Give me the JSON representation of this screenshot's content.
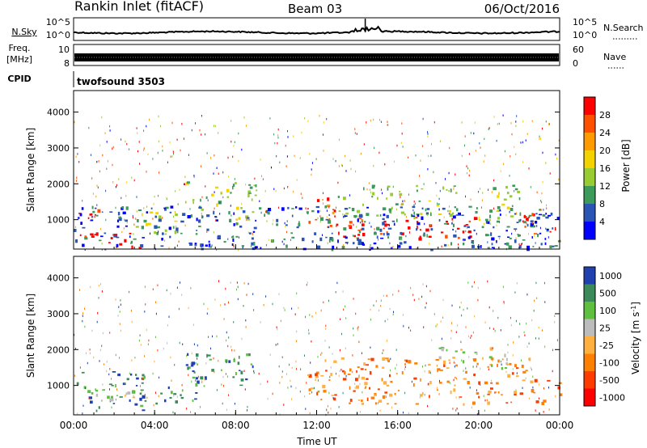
{
  "header": {
    "title": "Rankin Inlet (fitACF)",
    "beam": "Beam 03",
    "date": "06/Oct/2016"
  },
  "noise_panel": {
    "left_label": "N.Sky",
    "right_label": "N.Search",
    "ticks_left": [
      "10^5",
      "10^0"
    ],
    "ticks_right": [
      "10^5",
      "10^0"
    ]
  },
  "freq_panel": {
    "left_label_line1": "Freq.",
    "left_label_line2": "[MHz]",
    "right_label": "Nave",
    "ticks_left": [
      "10",
      "8"
    ],
    "ticks_right": [
      "60",
      "0"
    ]
  },
  "cpid": {
    "label": "CPID",
    "value": "twofsound 3503"
  },
  "chart_data": [
    {
      "type": "heatmap",
      "quantity": "Power",
      "ylabel": "Slant Range [km]",
      "colorbar_label": "Power [dB]",
      "colorbar_ticks": [
        "28",
        "24",
        "20",
        "16",
        "12",
        "8",
        "4"
      ],
      "colorbar_colors": [
        "#ff0000",
        "#ff5000",
        "#ff9a00",
        "#f2d200",
        "#99cc33",
        "#3c9a5a",
        "#2a55b5",
        "#0000ff"
      ],
      "xlim": [
        "00:00",
        "00:00"
      ],
      "ylim": [
        180,
        4600
      ],
      "yticks": [
        1000,
        2000,
        3000,
        4000
      ],
      "xticks": [
        "00:00",
        "04:00",
        "08:00",
        "12:00",
        "16:00",
        "20:00",
        "00:00"
      ],
      "regions": [
        {
          "t0": 0.0,
          "t1": 1.2,
          "r0": 500,
          "r1": 1500,
          "level": 0
        },
        {
          "t0": 1.0,
          "t1": 3.3,
          "r0": 180,
          "r1": 700,
          "level": 0
        },
        {
          "t0": 3.0,
          "t1": 5.5,
          "r0": 600,
          "r1": 1300,
          "level": 4
        },
        {
          "t0": 5.5,
          "t1": 9.0,
          "r0": 1000,
          "r1": 2100,
          "level": 4
        },
        {
          "t0": 11.5,
          "t1": 13.0,
          "r0": 900,
          "r1": 1700,
          "level": 1
        },
        {
          "t0": 12.5,
          "t1": 20.0,
          "r0": 500,
          "r1": 1100,
          "level": 0
        },
        {
          "t0": 13.0,
          "t1": 19.0,
          "r0": 1100,
          "r1": 2000,
          "level": 4
        },
        {
          "t0": 20.0,
          "t1": 22.0,
          "r0": 1000,
          "r1": 2100,
          "level": 4
        },
        {
          "t0": 22.0,
          "t1": 24.0,
          "r0": 600,
          "r1": 1200,
          "level": 0
        },
        {
          "t0": 0.0,
          "t1": 24.0,
          "r0": 180,
          "r1": 1400,
          "level": 6
        }
      ]
    },
    {
      "type": "heatmap",
      "quantity": "Velocity",
      "ylabel": "Slant Range [km]",
      "colorbar_label": "Velocity [m s^-1]",
      "colorbar_ticks": [
        "1000",
        "500",
        "100",
        "25",
        "-25",
        "-100",
        "-500",
        "-1000"
      ],
      "colorbar_colors": [
        "#2040b0",
        "#3c8a5a",
        "#5fbf3f",
        "#bcbcbc",
        "#ffb040",
        "#ff8000",
        "#ff3c00",
        "#ff0000"
      ],
      "xlim": [
        "00:00",
        "00:00"
      ],
      "ylim": [
        180,
        4600
      ],
      "yticks": [
        1000,
        2000,
        3000,
        4000
      ],
      "xticks": [
        "00:00",
        "04:00",
        "08:00",
        "12:00",
        "16:00",
        "20:00",
        "00:00"
      ],
      "xlabel": "Time UT",
      "regions": [
        {
          "t0": 0.0,
          "t1": 3.5,
          "r0": 300,
          "r1": 1400,
          "level": 1
        },
        {
          "t0": 1.0,
          "t1": 3.0,
          "r0": 500,
          "r1": 1000,
          "level": 3
        },
        {
          "t0": 3.5,
          "t1": 6.0,
          "r0": 500,
          "r1": 1000,
          "level": 1
        },
        {
          "t0": 5.5,
          "t1": 9.0,
          "r0": 1000,
          "r1": 2000,
          "level": 1
        },
        {
          "t0": 11.5,
          "t1": 22.5,
          "r0": 500,
          "r1": 1800,
          "level": 5
        },
        {
          "t0": 18.0,
          "t1": 21.5,
          "r0": 1500,
          "r1": 2100,
          "level": 3
        },
        {
          "t0": 22.5,
          "t1": 24.0,
          "r0": 500,
          "r1": 1200,
          "level": 5
        }
      ]
    }
  ]
}
